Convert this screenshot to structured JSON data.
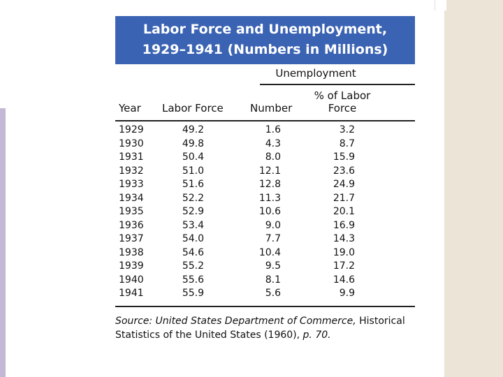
{
  "title": {
    "line1": "Labor Force and Unemployment,",
    "line2": "1929–1941 (Numbers in Millions)"
  },
  "table": {
    "group_header": "Unemployment",
    "columns": [
      "Year",
      "Labor Force",
      "Number",
      "% of Labor",
      "Force"
    ],
    "rows": [
      [
        "1929",
        "49.2",
        "1.6",
        "3.2"
      ],
      [
        "1930",
        "49.8",
        "4.3",
        "8.7"
      ],
      [
        "1931",
        "50.4",
        "8.0",
        "15.9"
      ],
      [
        "1932",
        "51.0",
        "12.1",
        "23.6"
      ],
      [
        "1933",
        "51.6",
        "12.8",
        "24.9"
      ],
      [
        "1934",
        "52.2",
        "11.3",
        "21.7"
      ],
      [
        "1935",
        "52.9",
        "10.6",
        "20.1"
      ],
      [
        "1936",
        "53.4",
        "9.0",
        "16.9"
      ],
      [
        "1937",
        "54.0",
        "7.7",
        "14.3"
      ],
      [
        "1938",
        "54.6",
        "10.4",
        "19.0"
      ],
      [
        "1939",
        "55.2",
        "9.5",
        "17.2"
      ],
      [
        "1940",
        "55.6",
        "8.1",
        "14.6"
      ],
      [
        "1941",
        "55.9",
        "5.6",
        "9.9"
      ]
    ]
  },
  "source": [
    "Source: United States Department of Commerce,",
    "Historical Statistics of the United States (1960),",
    "p. 70."
  ]
}
